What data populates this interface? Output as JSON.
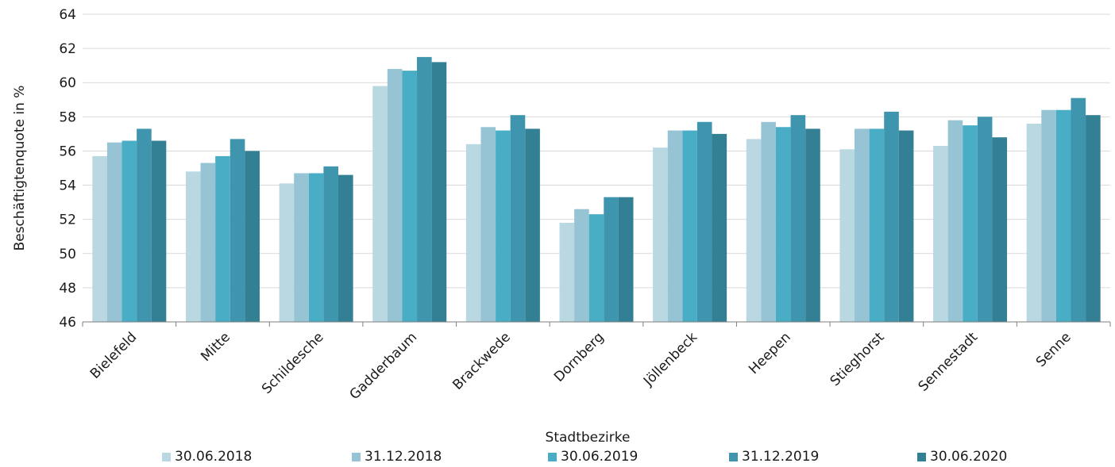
{
  "chart_data": {
    "type": "bar",
    "title": "",
    "xlabel": "Stadtbezirke",
    "ylabel": "Beschäftigtenquote in %",
    "ylim": [
      46,
      64
    ],
    "yticks": [
      "46",
      "48",
      "50",
      "52",
      "54",
      "56",
      "58",
      "60",
      "62",
      "64"
    ],
    "grid": true,
    "legend_position": "bottom",
    "categories": [
      "Bielefeld",
      "Mitte",
      "Schildesche",
      "Gadderbaum",
      "Brackwede",
      "Dornberg",
      "Jöllenbeck",
      "Heepen",
      "Stieghorst",
      "Sennestadt",
      "Senne"
    ],
    "series": [
      {
        "name": "30.06.2018",
        "color": "#b9d8e2",
        "values": [
          55.7,
          54.8,
          54.1,
          59.8,
          56.4,
          51.8,
          56.2,
          56.7,
          56.1,
          56.3,
          57.6
        ]
      },
      {
        "name": "31.12.2018",
        "color": "#97c4d5",
        "values": [
          56.5,
          55.3,
          54.7,
          60.8,
          57.4,
          52.6,
          57.2,
          57.7,
          57.3,
          57.8,
          58.4
        ]
      },
      {
        "name": "30.06.2019",
        "color": "#4aadc6",
        "values": [
          56.6,
          55.7,
          54.7,
          60.7,
          57.2,
          52.3,
          57.2,
          57.4,
          57.3,
          57.5,
          58.4
        ]
      },
      {
        "name": "31.12.2019",
        "color": "#3e95ad",
        "values": [
          57.3,
          56.7,
          55.1,
          61.5,
          58.1,
          53.3,
          57.7,
          58.1,
          58.3,
          58.0,
          59.1
        ]
      },
      {
        "name": "30.06.2020",
        "color": "#337f93",
        "values": [
          56.6,
          56.0,
          54.6,
          61.2,
          57.3,
          53.3,
          57.0,
          57.3,
          57.2,
          56.8,
          58.1
        ]
      }
    ]
  }
}
